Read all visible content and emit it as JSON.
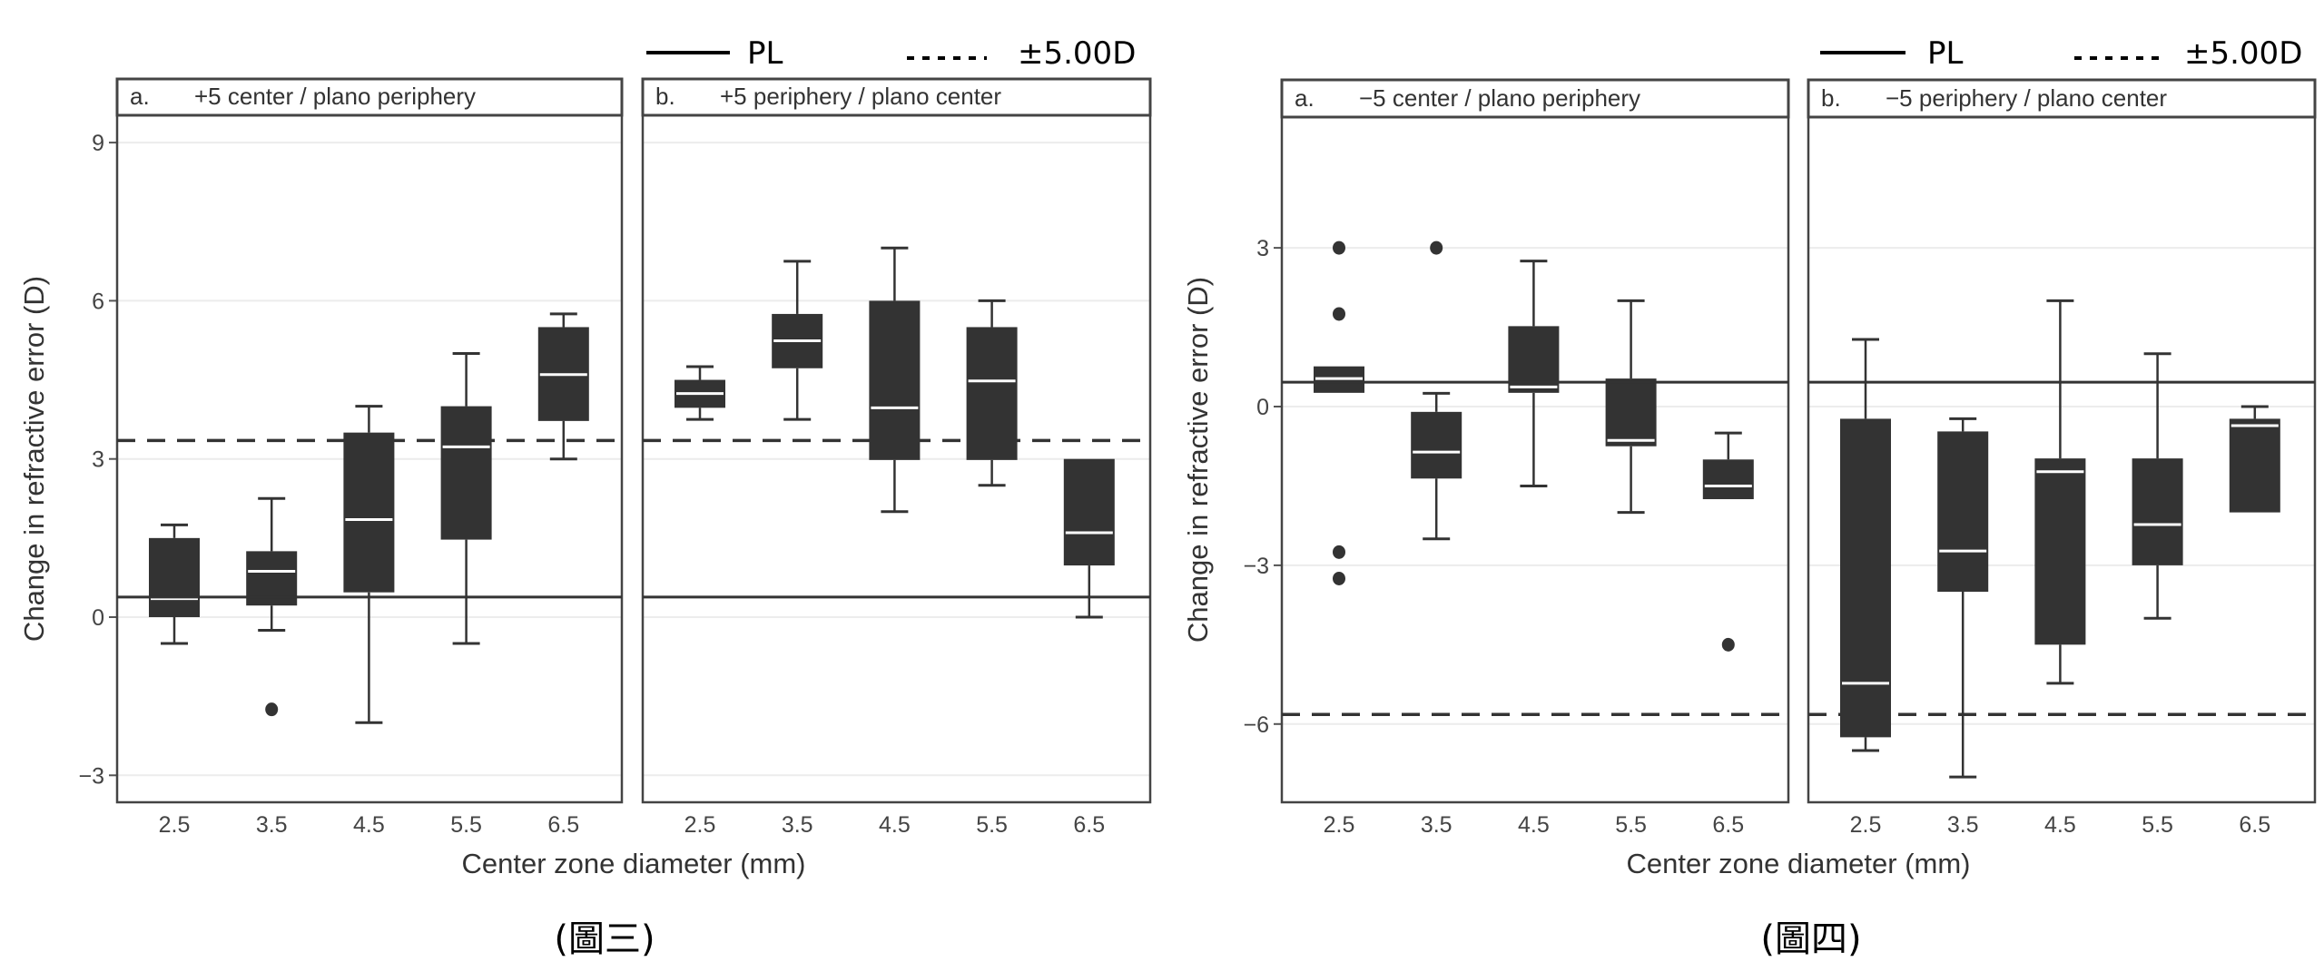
{
  "chart_data": [
    {
      "type": "box",
      "figure_caption": "(圖三)",
      "ylabel": "Change in refractive error (D)",
      "xlabel": "Center zone diameter (mm)",
      "ylim": [
        -3.5,
        9.5
      ],
      "yticks": [
        9,
        6,
        3,
        0,
        -3
      ],
      "yticks_labels": [
        "9",
        "6",
        "3",
        "0",
        "−3"
      ],
      "categories": [
        "2.5",
        "3.5",
        "4.5",
        "5.5",
        "6.5"
      ],
      "grid": "horizontal-major",
      "legend": {
        "placement": "top-right",
        "entries": [
          {
            "label": "PL",
            "style": "solid"
          },
          {
            "label": "±5.00D",
            "style": "dashed"
          }
        ]
      },
      "reference_lines": {
        "PL": 0.38,
        "limit": 3.35
      },
      "panels": [
        {
          "label": "a.",
          "title": "+5 center / plano periphery",
          "boxes": [
            {
              "x": "2.5",
              "whisker_low": -0.5,
              "q1": 0.0,
              "median": 0.35,
              "q3": 1.5,
              "whisker_high": 1.75,
              "outliers": []
            },
            {
              "x": "3.5",
              "whisker_low": -0.25,
              "q1": 0.22,
              "median": 0.87,
              "q3": 1.25,
              "whisker_high": 2.25,
              "outliers": [
                -1.75
              ]
            },
            {
              "x": "4.5",
              "whisker_low": -2.0,
              "q1": 0.47,
              "median": 1.85,
              "q3": 3.5,
              "whisker_high": 4.0,
              "outliers": []
            },
            {
              "x": "5.5",
              "whisker_low": -0.5,
              "q1": 1.47,
              "median": 3.23,
              "q3": 4.0,
              "whisker_high": 5.0,
              "outliers": []
            },
            {
              "x": "6.5",
              "whisker_low": 3.0,
              "q1": 3.72,
              "median": 4.6,
              "q3": 5.5,
              "whisker_high": 5.75,
              "outliers": []
            }
          ]
        },
        {
          "label": "b.",
          "title": "+5 periphery / plano center",
          "boxes": [
            {
              "x": "2.5",
              "whisker_low": 3.75,
              "q1": 3.97,
              "median": 4.24,
              "q3": 4.5,
              "whisker_high": 4.75,
              "outliers": []
            },
            {
              "x": "3.5",
              "whisker_low": 3.75,
              "q1": 4.72,
              "median": 5.24,
              "q3": 5.75,
              "whisker_high": 6.75,
              "outliers": []
            },
            {
              "x": "4.5",
              "whisker_low": 2.0,
              "q1": 2.98,
              "median": 3.97,
              "q3": 6.0,
              "whisker_high": 7.0,
              "outliers": []
            },
            {
              "x": "5.5",
              "whisker_low": 2.5,
              "q1": 2.98,
              "median": 4.48,
              "q3": 5.5,
              "whisker_high": 6.0,
              "outliers": []
            },
            {
              "x": "6.5",
              "whisker_low": 0.0,
              "q1": 0.98,
              "median": 1.6,
              "q3": 3.0,
              "whisker_high": 3.0,
              "outliers": []
            }
          ]
        }
      ]
    },
    {
      "type": "box",
      "figure_caption": "(圖四)",
      "ylabel": "Change in refractive error (D)",
      "xlabel": "Center zone diameter (mm)",
      "ylim": [
        -7.5,
        5.5
      ],
      "yticks": [
        3,
        0,
        -3,
        -6
      ],
      "yticks_labels": [
        "3",
        "0",
        "−3",
        "−6"
      ],
      "categories": [
        "2.5",
        "3.5",
        "4.5",
        "5.5",
        "6.5"
      ],
      "grid": "horizontal-major",
      "legend": {
        "placement": "top-right",
        "entries": [
          {
            "label": "PL",
            "style": "solid"
          },
          {
            "label": "±5.00D",
            "style": "dashed"
          }
        ]
      },
      "reference_lines": {
        "PL": 0.46,
        "limit": -5.82
      },
      "panels": [
        {
          "label": "a.",
          "title": "−5 center / plano periphery",
          "boxes": [
            {
              "x": "2.5",
              "whisker_low": 0.26,
              "q1": 0.26,
              "median": 0.53,
              "q3": 0.76,
              "whisker_high": 0.76,
              "outliers": [
                3.0,
                1.75,
                -2.75,
                -3.25
              ]
            },
            {
              "x": "3.5",
              "whisker_low": -2.5,
              "q1": -1.36,
              "median": -0.86,
              "q3": -0.1,
              "whisker_high": 0.25,
              "outliers": [
                3.0
              ]
            },
            {
              "x": "4.5",
              "whisker_low": -1.5,
              "q1": 0.26,
              "median": 0.37,
              "q3": 1.52,
              "whisker_high": 2.75,
              "outliers": []
            },
            {
              "x": "5.5",
              "whisker_low": -2.0,
              "q1": -0.75,
              "median": -0.64,
              "q3": 0.53,
              "whisker_high": 2.0,
              "outliers": []
            },
            {
              "x": "6.5",
              "whisker_low": -1.75,
              "q1": -1.75,
              "median": -1.5,
              "q3": -1.0,
              "whisker_high": -0.5,
              "outliers": [
                -4.5
              ]
            }
          ]
        },
        {
          "label": "b.",
          "title": "−5 periphery / plano center",
          "boxes": [
            {
              "x": "2.5",
              "whisker_low": -6.5,
              "q1": -6.25,
              "median": -5.23,
              "q3": -0.23,
              "whisker_high": 1.27,
              "outliers": []
            },
            {
              "x": "3.5",
              "whisker_low": -7.0,
              "q1": -3.5,
              "median": -2.73,
              "q3": -0.47,
              "whisker_high": -0.23,
              "outliers": []
            },
            {
              "x": "4.5",
              "whisker_low": -5.23,
              "q1": -4.5,
              "median": -1.23,
              "q3": -0.98,
              "whisker_high": 2.0,
              "outliers": []
            },
            {
              "x": "5.5",
              "whisker_low": -4.0,
              "q1": -3.0,
              "median": -2.23,
              "q3": -0.98,
              "whisker_high": 1.0,
              "outliers": []
            },
            {
              "x": "6.5",
              "whisker_low": -2.0,
              "q1": -2.0,
              "median": -0.36,
              "q3": -0.23,
              "whisker_high": 0.0,
              "outliers": []
            }
          ]
        }
      ]
    }
  ],
  "colors": {
    "box_fill": "#333333",
    "median": "#ffffff",
    "lines": "#333333",
    "grid": "#ececec"
  }
}
